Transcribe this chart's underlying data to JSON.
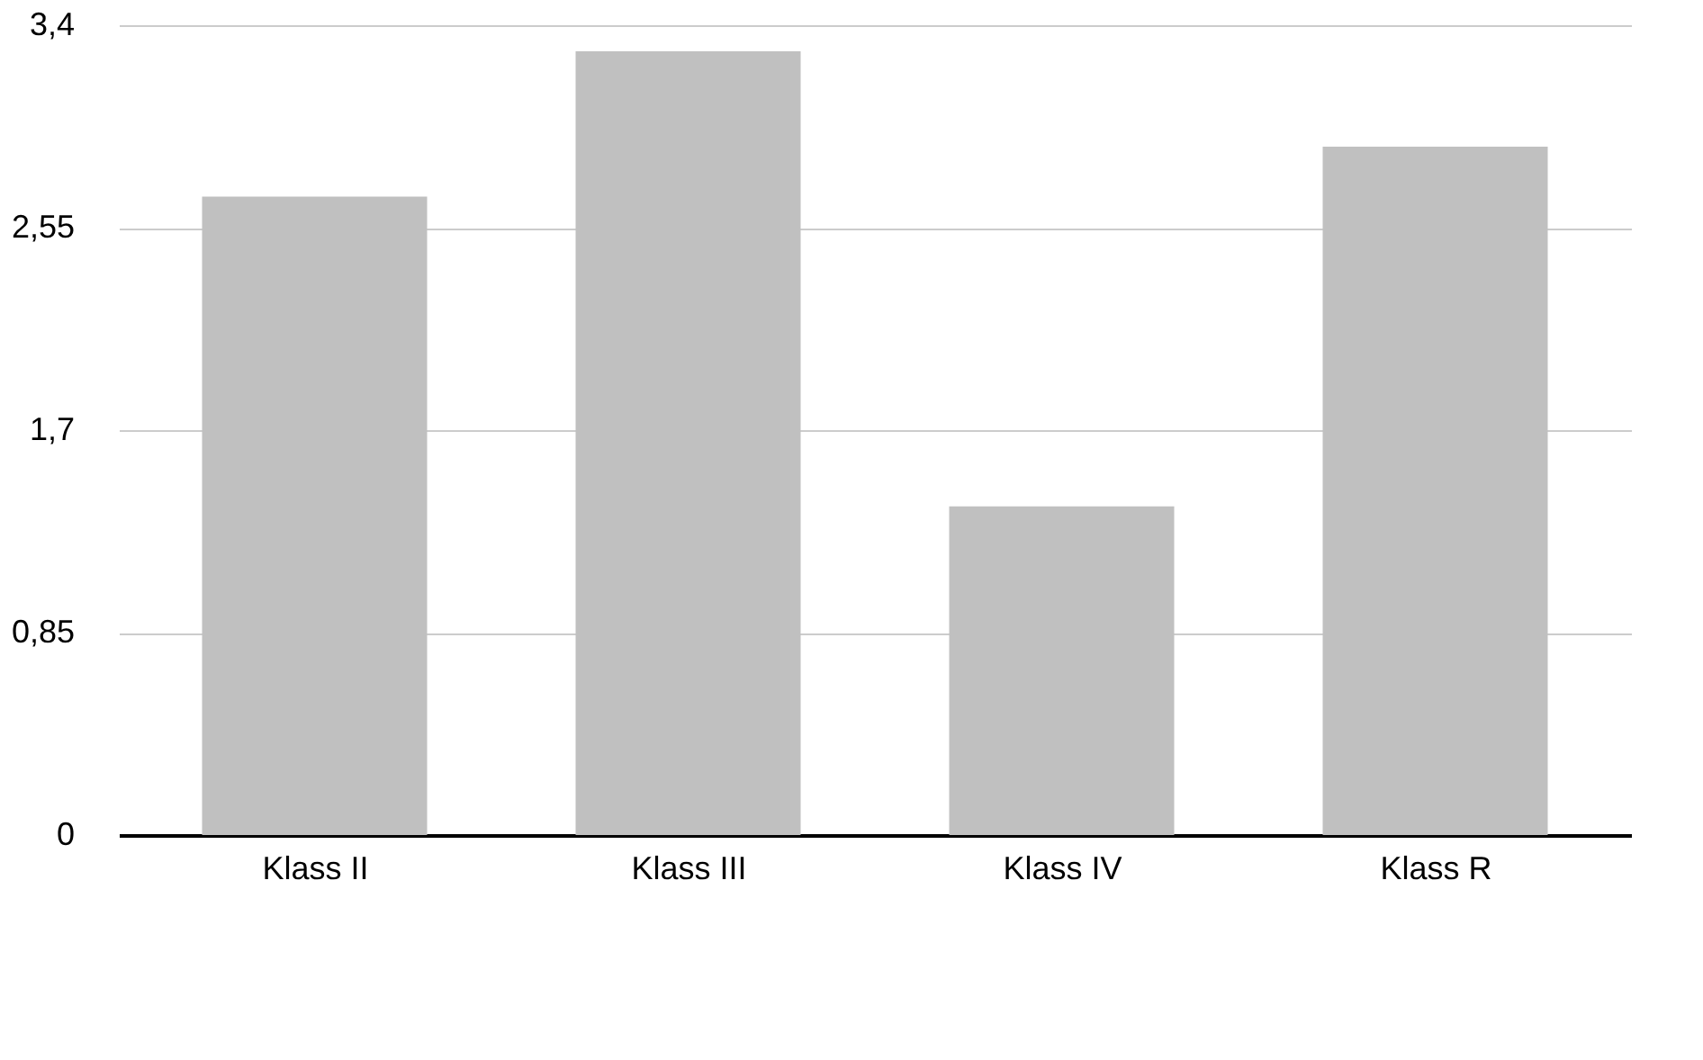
{
  "chart_data": {
    "type": "bar",
    "categories": [
      "Klass II",
      "Klass III",
      "Klass IV",
      "Klass R"
    ],
    "series": [
      {
        "color": "#c0c0c0",
        "values": [
          2.68,
          3.29,
          1.38,
          2.89
        ]
      }
    ],
    "ylim": [
      0,
      3.4
    ],
    "yticks": [
      0,
      {
        "value": 0.85,
        "label": "0,85"
      },
      {
        "value": 1.7,
        "label": "1,7"
      },
      {
        "value": 2.55,
        "label": "2,55"
      },
      {
        "value": 3.4,
        "label": "3,4"
      }
    ],
    "grid": "y"
  }
}
